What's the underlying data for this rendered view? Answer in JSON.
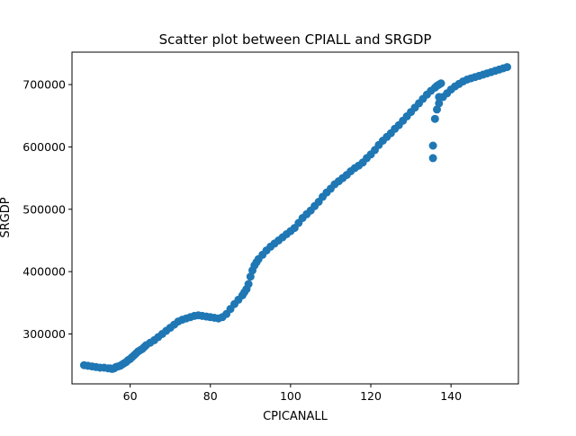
{
  "chart_data": {
    "type": "scatter",
    "title": "Scatter plot between CPIALL and SRGDP",
    "xlabel": "CPICANALL",
    "ylabel": "SRGDP",
    "xlim": [
      45.5,
      156.8
    ],
    "ylim": [
      220000,
      752000
    ],
    "xticks": [
      60,
      80,
      100,
      120,
      140
    ],
    "xtick_labels": [
      "60",
      "80",
      "100",
      "120",
      "140"
    ],
    "yticks": [
      300000,
      400000,
      500000,
      600000,
      700000
    ],
    "ytick_labels": [
      "300000",
      "400000",
      "500000",
      "600000",
      "700000"
    ],
    "grid": false,
    "legend": "none",
    "marker_color": "#1f77b4",
    "x": [
      48.5,
      49.5,
      50.5,
      51.5,
      52.5,
      53.5,
      54.5,
      55.0,
      55.5,
      56.0,
      56.5,
      57.0,
      57.5,
      58.0,
      58.5,
      59.0,
      59.5,
      60.0,
      60.5,
      61.0,
      61.5,
      62.0,
      62.5,
      63.0,
      63.5,
      64.0,
      65.0,
      66.0,
      67.0,
      68.0,
      69.0,
      70.0,
      71.0,
      72.0,
      73.0,
      74.0,
      75.0,
      76.0,
      77.0,
      78.0,
      79.0,
      80.0,
      81.0,
      82.0,
      83.0,
      84.0,
      85.0,
      86.0,
      87.0,
      88.0,
      88.5,
      89.0,
      89.5,
      90.0,
      90.5,
      91.0,
      91.5,
      92.0,
      93.0,
      94.0,
      95.0,
      96.0,
      97.0,
      98.0,
      99.0,
      100.0,
      101.0,
      102.0,
      103.0,
      104.0,
      105.0,
      106.0,
      107.0,
      108.0,
      109.0,
      110.0,
      111.0,
      112.0,
      113.0,
      114.0,
      115.0,
      116.0,
      117.0,
      118.0,
      119.0,
      120.0,
      121.0,
      122.0,
      123.0,
      124.0,
      125.0,
      126.0,
      127.0,
      128.0,
      129.0,
      130.0,
      131.0,
      132.0,
      133.0,
      134.0,
      135.0,
      136.0,
      136.5,
      137.0,
      137.5,
      137.0,
      136.5,
      136.0,
      135.5,
      135.5,
      137.0,
      138.0,
      139.0,
      140.0,
      141.0,
      142.0,
      143.0,
      144.0,
      145.0,
      146.0,
      147.0,
      148.0,
      149.0,
      150.0,
      151.0,
      152.0,
      153.0,
      154.0
    ],
    "y": [
      250000,
      249000,
      248000,
      247000,
      246000,
      246000,
      245000,
      245000,
      244000,
      245000,
      247000,
      248000,
      249000,
      251000,
      253000,
      255000,
      258000,
      260000,
      263000,
      266000,
      269000,
      272000,
      274000,
      276000,
      279000,
      282000,
      286000,
      290000,
      295000,
      300000,
      305000,
      310000,
      315000,
      320000,
      323000,
      325000,
      327000,
      329000,
      330000,
      329000,
      328000,
      327000,
      326000,
      325000,
      327000,
      332000,
      340000,
      348000,
      355000,
      362000,
      367000,
      372000,
      380000,
      392000,
      402000,
      410000,
      415000,
      420000,
      427000,
      434000,
      440000,
      445000,
      450000,
      455000,
      460000,
      465000,
      470000,
      478000,
      486000,
      492000,
      498000,
      505000,
      512000,
      520000,
      527000,
      533000,
      540000,
      545000,
      550000,
      555000,
      561000,
      566000,
      570000,
      575000,
      582000,
      588000,
      595000,
      603000,
      610000,
      616000,
      622000,
      629000,
      635000,
      642000,
      649000,
      656000,
      663000,
      670000,
      677000,
      684000,
      690000,
      695000,
      698000,
      700000,
      702000,
      680000,
      660000,
      645000,
      602000,
      582000,
      670000,
      680000,
      686000,
      692000,
      697000,
      701000,
      705000,
      708000,
      710000,
      712000,
      714000,
      716000,
      718000,
      720000,
      722000,
      724000,
      726000,
      728000
    ]
  }
}
